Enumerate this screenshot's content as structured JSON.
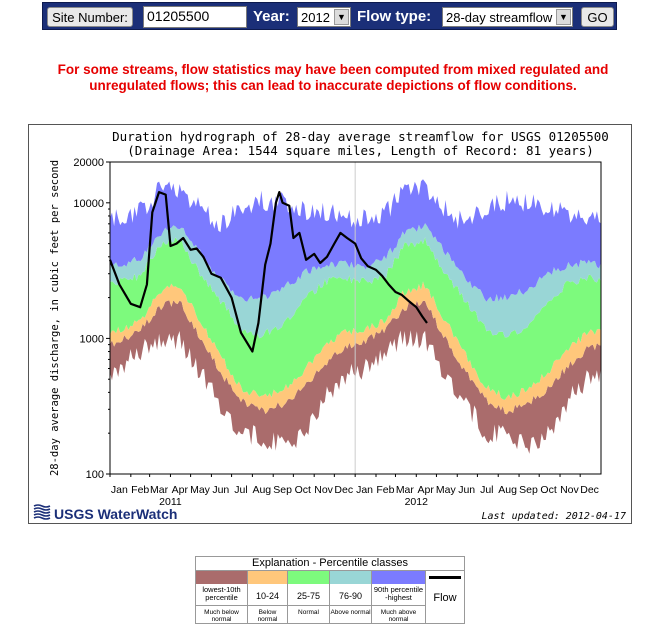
{
  "form": {
    "site_label": "Site Number:",
    "site_value": "01205500",
    "year_label": "Year:",
    "year_value": "2012",
    "flow_label": "Flow type:",
    "flow_value": "28-day streamflow",
    "go_label": "GO"
  },
  "warning": {
    "line1": "For some streams, flow statistics may have been computed from mixed regulated and",
    "line2": "unregulated flows; this can lead to inaccurate depictions of flow conditions."
  },
  "chart_data": {
    "type": "area",
    "title": "Duration hydrograph of 28-day average streamflow for USGS 01205500",
    "subtitle": "(Drainage Area: 1544 square miles, Length of Record: 81 years)",
    "ylabel": "28-day average discharge, in cubic feet per second",
    "yscale": "log",
    "ylim": [
      100,
      20000
    ],
    "yticks": [
      "20000",
      "10000",
      "1000",
      "100"
    ],
    "x_months": [
      "Jan",
      "Feb",
      "Mar",
      "Apr",
      "May",
      "Jun",
      "Jul",
      "Aug",
      "Sep",
      "Oct",
      "Nov",
      "Dec",
      "Jan",
      "Feb",
      "Mar",
      "Apr",
      "May",
      "Jun",
      "Jul",
      "Aug",
      "Sep",
      "Oct",
      "Nov",
      "Dec"
    ],
    "x_years": [
      "2011",
      "2012"
    ],
    "band_colors": {
      "below10": "#aa6c6c",
      "p10_24": "#ffc77b",
      "p25_75": "#7dfa7d",
      "p76_90": "#99d6d6",
      "p90_max": "#7b7bff"
    },
    "percentiles": {
      "months": [
        1,
        2,
        3,
        4,
        5,
        6,
        7,
        8,
        9,
        10,
        11,
        12
      ],
      "min": [
        600,
        820,
        1000,
        960,
        560,
        330,
        200,
        190,
        160,
        190,
        350,
        520
      ],
      "p10": [
        950,
        1150,
        1700,
        1900,
        1000,
        560,
        350,
        290,
        330,
        420,
        640,
        850
      ],
      "p25": [
        1150,
        1350,
        2200,
        2500,
        1350,
        750,
        430,
        370,
        420,
        560,
        860,
        1100
      ],
      "p75": [
        2600,
        2900,
        4800,
        5300,
        3000,
        1900,
        1150,
        1050,
        1250,
        1850,
        2600,
        2800
      ],
      "p90": [
        3400,
        3900,
        6000,
        6700,
        4300,
        2700,
        2000,
        2000,
        2300,
        3000,
        3500,
        3600
      ],
      "max": [
        7500,
        8500,
        12500,
        13000,
        9000,
        7000,
        9000,
        10500,
        10000,
        9000,
        8500,
        8000
      ]
    },
    "flow_series": {
      "name": "Flow",
      "x": [
        "2011-01-01",
        "2011-01-15",
        "2011-02-01",
        "2011-02-15",
        "2011-02-25",
        "2011-03-05",
        "2011-03-15",
        "2011-03-25",
        "2011-04-01",
        "2011-04-10",
        "2011-04-20",
        "2011-05-01",
        "2011-05-10",
        "2011-05-20",
        "2011-06-01",
        "2011-06-15",
        "2011-07-01",
        "2011-07-15",
        "2011-08-01",
        "2011-08-10",
        "2011-08-20",
        "2011-08-28",
        "2011-09-05",
        "2011-09-10",
        "2011-09-15",
        "2011-09-25",
        "2011-10-01",
        "2011-10-10",
        "2011-10-20",
        "2011-11-01",
        "2011-11-10",
        "2011-11-20",
        "2011-12-01",
        "2011-12-10",
        "2011-12-20",
        "2012-01-01",
        "2012-01-10",
        "2012-01-20",
        "2012-02-01",
        "2012-02-10",
        "2012-02-20",
        "2012-03-01",
        "2012-03-10",
        "2012-03-20",
        "2012-04-01",
        "2012-04-10",
        "2012-04-17"
      ],
      "values": [
        3800,
        2500,
        1800,
        1700,
        2500,
        8500,
        12000,
        11500,
        4800,
        5000,
        5500,
        4500,
        4600,
        4000,
        3000,
        2800,
        2000,
        1100,
        800,
        1300,
        3500,
        5000,
        10000,
        12000,
        10000,
        9500,
        5500,
        6000,
        3800,
        4200,
        3600,
        4000,
        5000,
        6000,
        5500,
        5000,
        3900,
        3400,
        3200,
        2900,
        2500,
        2200,
        2100,
        1900,
        1700,
        1450,
        1300
      ]
    },
    "last_updated": "Last updated: 2012-04-17",
    "logo_text": "USGS WaterWatch"
  },
  "legend": {
    "title": "Explanation - Percentile classes",
    "classes": [
      {
        "range": "lowest-10th percentile",
        "desc": "Much below normal",
        "color": "#aa6c6c"
      },
      {
        "range": "10-24",
        "desc": "Below normal",
        "color": "#ffc77b"
      },
      {
        "range": "25-75",
        "desc": "Normal",
        "color": "#7dfa7d"
      },
      {
        "range": "76-90",
        "desc": "Above normal",
        "color": "#99d6d6"
      },
      {
        "range": "90th percentile -highest",
        "desc": "Much above normal",
        "color": "#7b7bff"
      }
    ],
    "flow_label": "Flow"
  }
}
